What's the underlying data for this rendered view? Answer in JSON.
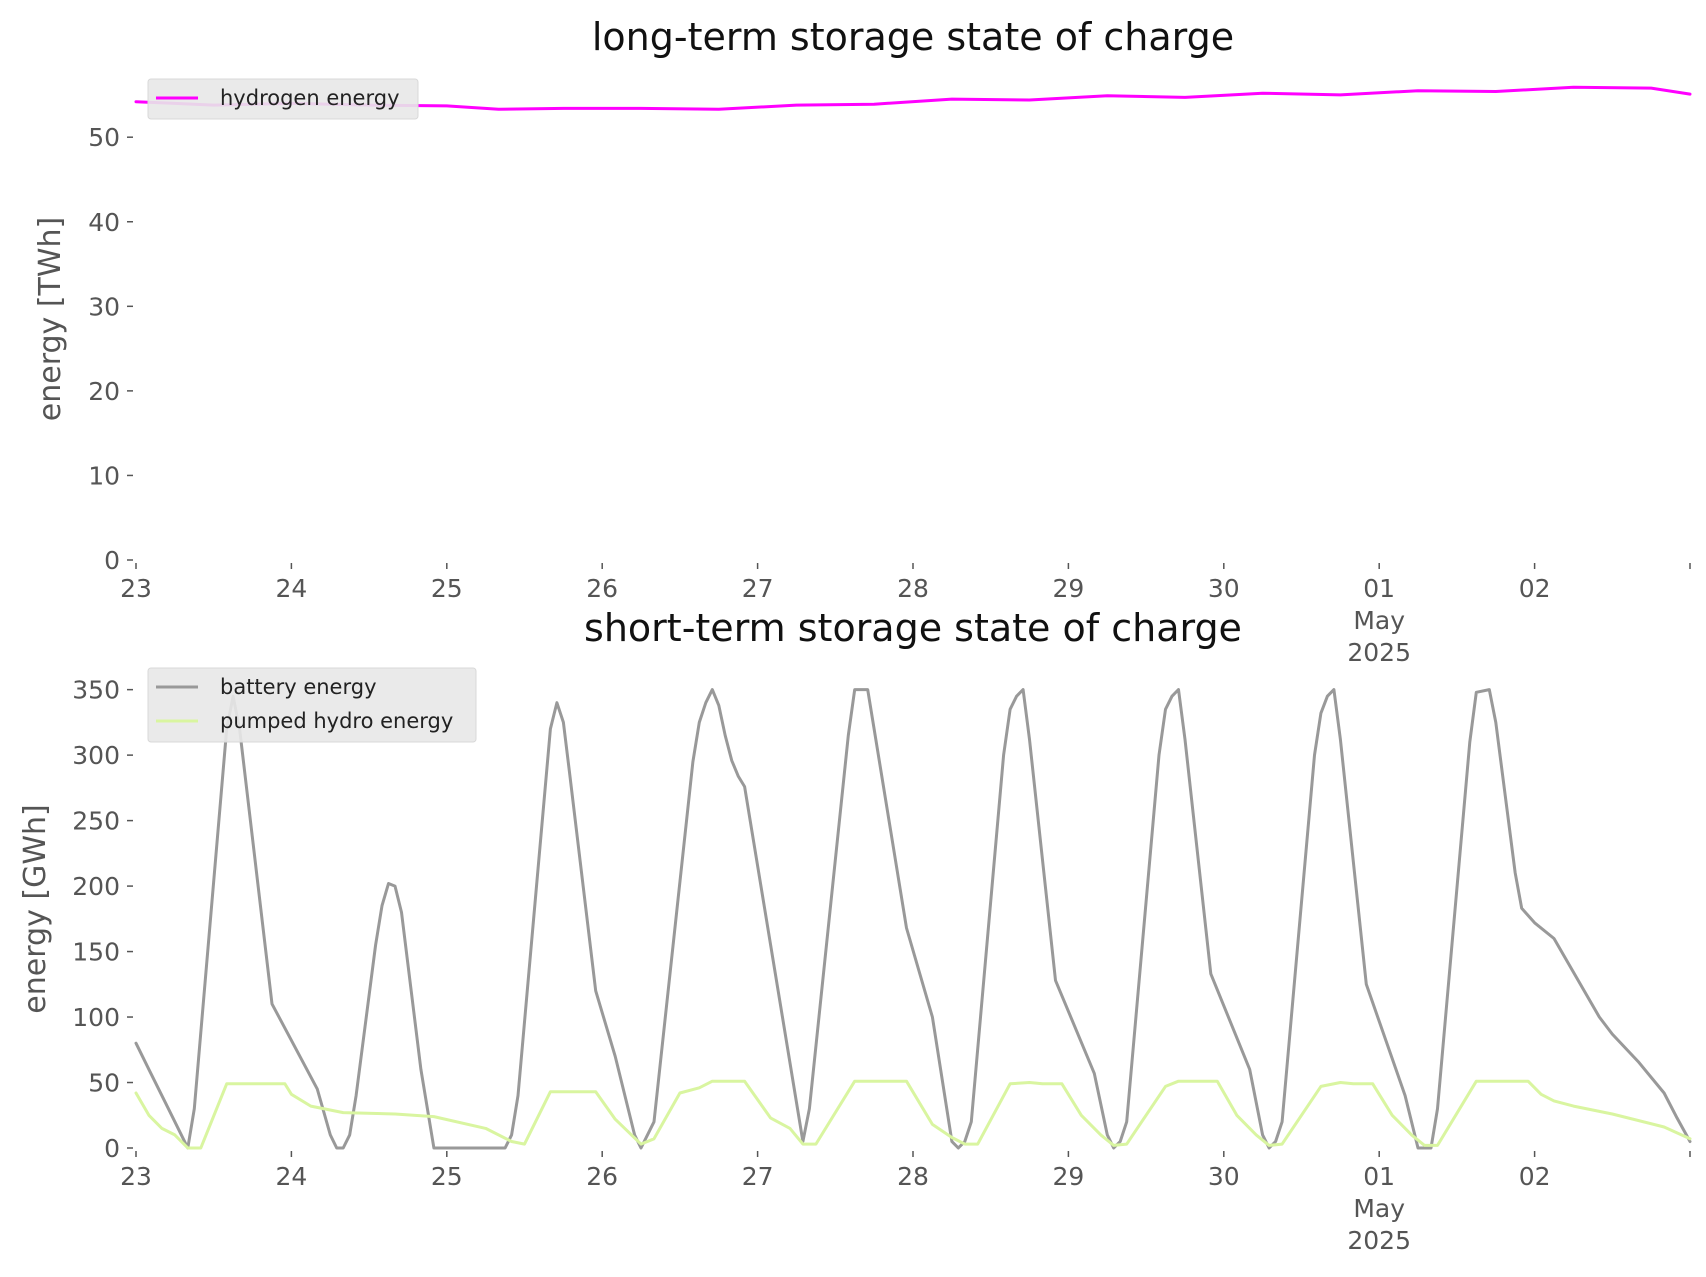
{
  "chart_data": [
    {
      "type": "line",
      "title": "long-term storage state of charge",
      "xlabel": "",
      "ylabel": "energy [TWh]",
      "ylim": [
        0,
        57
      ],
      "yticks": [
        0,
        10,
        20,
        30,
        40,
        50
      ],
      "x_axis": {
        "start": "2025-04-23",
        "end": "2025-05-03",
        "ticks": [
          {
            "date": "2025-04-23",
            "lines": [
              "23"
            ]
          },
          {
            "date": "2025-04-24",
            "lines": [
              "24"
            ]
          },
          {
            "date": "2025-04-25",
            "lines": [
              "25"
            ]
          },
          {
            "date": "2025-04-26",
            "lines": [
              "26"
            ]
          },
          {
            "date": "2025-04-27",
            "lines": [
              "27"
            ]
          },
          {
            "date": "2025-04-28",
            "lines": [
              "28"
            ]
          },
          {
            "date": "2025-04-29",
            "lines": [
              "29"
            ]
          },
          {
            "date": "2025-04-30",
            "lines": [
              "30"
            ]
          },
          {
            "date": "2025-05-01",
            "lines": [
              "01",
              "May",
              "2025"
            ]
          },
          {
            "date": "2025-05-02",
            "lines": [
              "02"
            ]
          },
          {
            "date": "2025-05-03",
            "lines": []
          }
        ]
      },
      "grid": false,
      "legend": "top-left",
      "series": [
        {
          "name": "hydrogen energy",
          "color": "#ff00ff",
          "points": [
            [
              "2025-04-23 00:00",
              54.2
            ],
            [
              "2025-04-23 06:00",
              54.0
            ],
            [
              "2025-04-23 12:00",
              53.8
            ],
            [
              "2025-04-24 00:00",
              54.0
            ],
            [
              "2025-04-24 12:00",
              53.8
            ],
            [
              "2025-04-25 00:00",
              53.7
            ],
            [
              "2025-04-25 08:00",
              53.3
            ],
            [
              "2025-04-25 18:00",
              53.4
            ],
            [
              "2025-04-26 06:00",
              53.4
            ],
            [
              "2025-04-26 18:00",
              53.3
            ],
            [
              "2025-04-27 06:00",
              53.8
            ],
            [
              "2025-04-27 18:00",
              53.9
            ],
            [
              "2025-04-28 06:00",
              54.5
            ],
            [
              "2025-04-28 18:00",
              54.4
            ],
            [
              "2025-04-29 06:00",
              54.9
            ],
            [
              "2025-04-29 18:00",
              54.7
            ],
            [
              "2025-04-30 06:00",
              55.2
            ],
            [
              "2025-04-30 18:00",
              55.0
            ],
            [
              "2025-05-01 06:00",
              55.5
            ],
            [
              "2025-05-01 18:00",
              55.4
            ],
            [
              "2025-05-02 06:00",
              55.9
            ],
            [
              "2025-05-02 18:00",
              55.8
            ],
            [
              "2025-05-03 00:00",
              55.1
            ]
          ]
        }
      ]
    },
    {
      "type": "line",
      "title": "short-term storage state of charge",
      "xlabel": "",
      "ylabel": "energy [GWh]",
      "ylim": [
        0,
        365
      ],
      "yticks": [
        0,
        50,
        100,
        150,
        200,
        250,
        300,
        350
      ],
      "x_axis": {
        "start": "2025-04-23",
        "end": "2025-05-03",
        "ticks": [
          {
            "date": "2025-04-23",
            "lines": [
              "23"
            ]
          },
          {
            "date": "2025-04-24",
            "lines": [
              "24"
            ]
          },
          {
            "date": "2025-04-25",
            "lines": [
              "25"
            ]
          },
          {
            "date": "2025-04-26",
            "lines": [
              "26"
            ]
          },
          {
            "date": "2025-04-27",
            "lines": [
              "27"
            ]
          },
          {
            "date": "2025-04-28",
            "lines": [
              "28"
            ]
          },
          {
            "date": "2025-04-29",
            "lines": [
              "29"
            ]
          },
          {
            "date": "2025-04-30",
            "lines": [
              "30"
            ]
          },
          {
            "date": "2025-05-01",
            "lines": [
              "01",
              "May",
              "2025"
            ]
          },
          {
            "date": "2025-05-02",
            "lines": [
              "02"
            ]
          },
          {
            "date": "2025-05-03",
            "lines": []
          }
        ]
      },
      "grid": false,
      "legend": "top-left",
      "series": [
        {
          "name": "battery energy",
          "color": "#999999",
          "points": [
            [
              "2025-04-23 00:00",
              80
            ],
            [
              "2025-04-23 02:00",
              60
            ],
            [
              "2025-04-23 05:00",
              30
            ],
            [
              "2025-04-23 08:00",
              0
            ],
            [
              "2025-04-23 09:00",
              30
            ],
            [
              "2025-04-23 14:00",
              320
            ],
            [
              "2025-04-23 15:00",
              345
            ],
            [
              "2025-04-23 16:00",
              320
            ],
            [
              "2025-04-23 21:00",
              110
            ],
            [
              "2025-04-24 04:00",
              45
            ],
            [
              "2025-04-24 06:00",
              10
            ],
            [
              "2025-04-24 07:00",
              0
            ],
            [
              "2025-04-24 08:00",
              0
            ],
            [
              "2025-04-24 09:00",
              10
            ],
            [
              "2025-04-24 10:00",
              40
            ],
            [
              "2025-04-24 13:00",
              155
            ],
            [
              "2025-04-24 14:00",
              185
            ],
            [
              "2025-04-24 15:00",
              202
            ],
            [
              "2025-04-24 16:00",
              200
            ],
            [
              "2025-04-24 17:00",
              180
            ],
            [
              "2025-04-24 20:00",
              60
            ],
            [
              "2025-04-24 22:00",
              0
            ],
            [
              "2025-04-25 09:00",
              0
            ],
            [
              "2025-04-25 10:00",
              10
            ],
            [
              "2025-04-25 11:00",
              40
            ],
            [
              "2025-04-25 16:00",
              320
            ],
            [
              "2025-04-25 17:00",
              340
            ],
            [
              "2025-04-25 18:00",
              325
            ],
            [
              "2025-04-25 19:00",
              285
            ],
            [
              "2025-04-25 23:00",
              120
            ],
            [
              "2025-04-26 02:00",
              70
            ],
            [
              "2025-04-26 05:00",
              10
            ],
            [
              "2025-04-26 06:00",
              0
            ],
            [
              "2025-04-26 08:00",
              20
            ],
            [
              "2025-04-26 14:00",
              295
            ],
            [
              "2025-04-26 15:00",
              325
            ],
            [
              "2025-04-26 16:00",
              340
            ],
            [
              "2025-04-26 17:00",
              350
            ],
            [
              "2025-04-26 18:00",
              338
            ],
            [
              "2025-04-26 19:00",
              315
            ],
            [
              "2025-04-26 20:00",
              296
            ],
            [
              "2025-04-26 21:00",
              284
            ],
            [
              "2025-04-26 22:00",
              276
            ],
            [
              "2025-04-27 07:00",
              5
            ],
            [
              "2025-04-27 08:00",
              30
            ],
            [
              "2025-04-27 14:00",
              315
            ],
            [
              "2025-04-27 15:00",
              350
            ],
            [
              "2025-04-27 17:00",
              350
            ],
            [
              "2025-04-27 18:00",
              320
            ],
            [
              "2025-04-27 23:00",
              168
            ],
            [
              "2025-04-28 03:00",
              100
            ],
            [
              "2025-04-28 06:00",
              5
            ],
            [
              "2025-04-28 07:00",
              0
            ],
            [
              "2025-04-28 08:00",
              5
            ],
            [
              "2025-04-28 09:00",
              20
            ],
            [
              "2025-04-28 14:00",
              300
            ],
            [
              "2025-04-28 15:00",
              335
            ],
            [
              "2025-04-28 16:00",
              345
            ],
            [
              "2025-04-28 17:00",
              350
            ],
            [
              "2025-04-28 18:00",
              312
            ],
            [
              "2025-04-28 22:00",
              128
            ],
            [
              "2025-04-29 04:00",
              57
            ],
            [
              "2025-04-29 06:00",
              10
            ],
            [
              "2025-04-29 07:00",
              0
            ],
            [
              "2025-04-29 08:00",
              5
            ],
            [
              "2025-04-29 09:00",
              20
            ],
            [
              "2025-04-29 14:00",
              300
            ],
            [
              "2025-04-29 15:00",
              335
            ],
            [
              "2025-04-29 16:00",
              345
            ],
            [
              "2025-04-29 17:00",
              350
            ],
            [
              "2025-04-29 18:00",
              312
            ],
            [
              "2025-04-29 22:00",
              133
            ],
            [
              "2025-04-30 04:00",
              60
            ],
            [
              "2025-04-30 06:00",
              10
            ],
            [
              "2025-04-30 07:00",
              0
            ],
            [
              "2025-04-30 08:00",
              5
            ],
            [
              "2025-04-30 09:00",
              20
            ],
            [
              "2025-04-30 14:00",
              300
            ],
            [
              "2025-04-30 15:00",
              332
            ],
            [
              "2025-04-30 16:00",
              345
            ],
            [
              "2025-04-30 17:00",
              350
            ],
            [
              "2025-04-30 18:00",
              312
            ],
            [
              "2025-04-30 22:00",
              125
            ],
            [
              "2025-05-01 04:00",
              40
            ],
            [
              "2025-05-01 06:00",
              0
            ],
            [
              "2025-05-01 08:00",
              0
            ],
            [
              "2025-05-01 09:00",
              30
            ],
            [
              "2025-05-01 14:00",
              310
            ],
            [
              "2025-05-01 15:00",
              348
            ],
            [
              "2025-05-01 17:00",
              350
            ],
            [
              "2025-05-01 18:00",
              325
            ],
            [
              "2025-05-01 21:00",
              210
            ],
            [
              "2025-05-01 22:00",
              183
            ],
            [
              "2025-05-02 00:00",
              172
            ],
            [
              "2025-05-02 03:00",
              160
            ],
            [
              "2025-05-02 10:00",
              100
            ],
            [
              "2025-05-02 12:00",
              87
            ],
            [
              "2025-05-02 16:00",
              66
            ],
            [
              "2025-05-02 20:00",
              42
            ],
            [
              "2025-05-02 22:00",
              23
            ],
            [
              "2025-05-03 00:00",
              5
            ]
          ]
        },
        {
          "name": "pumped hydro energy",
          "color": "#d9f5a0",
          "points": [
            [
              "2025-04-23 00:00",
              42
            ],
            [
              "2025-04-23 02:00",
              25
            ],
            [
              "2025-04-23 04:00",
              15
            ],
            [
              "2025-04-23 06:00",
              10
            ],
            [
              "2025-04-23 08:00",
              0
            ],
            [
              "2025-04-23 10:00",
              0
            ],
            [
              "2025-04-23 14:00",
              49
            ],
            [
              "2025-04-23 23:00",
              49
            ],
            [
              "2025-04-24 00:00",
              41
            ],
            [
              "2025-04-24 03:00",
              32
            ],
            [
              "2025-04-24 08:00",
              27
            ],
            [
              "2025-04-24 16:00",
              26
            ],
            [
              "2025-04-24 22:00",
              24
            ],
            [
              "2025-04-25 06:00",
              15
            ],
            [
              "2025-04-25 10:00",
              5
            ],
            [
              "2025-04-25 12:00",
              3
            ],
            [
              "2025-04-25 16:00",
              43
            ],
            [
              "2025-04-25 23:00",
              43
            ],
            [
              "2025-04-26 02:00",
              22
            ],
            [
              "2025-04-26 06:00",
              3
            ],
            [
              "2025-04-26 08:00",
              7
            ],
            [
              "2025-04-26 12:00",
              42
            ],
            [
              "2025-04-26 15:00",
              46
            ],
            [
              "2025-04-26 17:00",
              51
            ],
            [
              "2025-04-26 22:00",
              51
            ],
            [
              "2025-04-27 02:00",
              23
            ],
            [
              "2025-04-27 05:00",
              15
            ],
            [
              "2025-04-27 07:00",
              3
            ],
            [
              "2025-04-27 09:00",
              3
            ],
            [
              "2025-04-27 15:00",
              51
            ],
            [
              "2025-04-27 23:00",
              51
            ],
            [
              "2025-04-28 03:00",
              18
            ],
            [
              "2025-04-28 06:00",
              8
            ],
            [
              "2025-04-28 08:00",
              3
            ],
            [
              "2025-04-28 10:00",
              3
            ],
            [
              "2025-04-28 15:00",
              49
            ],
            [
              "2025-04-28 18:00",
              50
            ],
            [
              "2025-04-28 20:00",
              49
            ],
            [
              "2025-04-28 23:00",
              49
            ],
            [
              "2025-04-29 02:00",
              25
            ],
            [
              "2025-04-29 05:00",
              10
            ],
            [
              "2025-04-29 07:00",
              2
            ],
            [
              "2025-04-29 09:00",
              3
            ],
            [
              "2025-04-29 15:00",
              47
            ],
            [
              "2025-04-29 17:00",
              51
            ],
            [
              "2025-04-29 23:00",
              51
            ],
            [
              "2025-04-30 02:00",
              25
            ],
            [
              "2025-04-30 05:00",
              10
            ],
            [
              "2025-04-30 07:00",
              2
            ],
            [
              "2025-04-30 09:00",
              3
            ],
            [
              "2025-04-30 15:00",
              47
            ],
            [
              "2025-04-30 18:00",
              50
            ],
            [
              "2025-04-30 20:00",
              49
            ],
            [
              "2025-04-30 23:00",
              49
            ],
            [
              "2025-05-01 02:00",
              25
            ],
            [
              "2025-05-01 05:00",
              10
            ],
            [
              "2025-05-01 07:00",
              2
            ],
            [
              "2025-05-01 09:00",
              2
            ],
            [
              "2025-05-01 15:00",
              51
            ],
            [
              "2025-05-01 23:00",
              51
            ],
            [
              "2025-05-02 01:00",
              41
            ],
            [
              "2025-05-02 03:00",
              36
            ],
            [
              "2025-05-02 06:00",
              32
            ],
            [
              "2025-05-02 12:00",
              26
            ],
            [
              "2025-05-02 20:00",
              16
            ],
            [
              "2025-05-03 00:00",
              7
            ]
          ]
        }
      ]
    }
  ]
}
